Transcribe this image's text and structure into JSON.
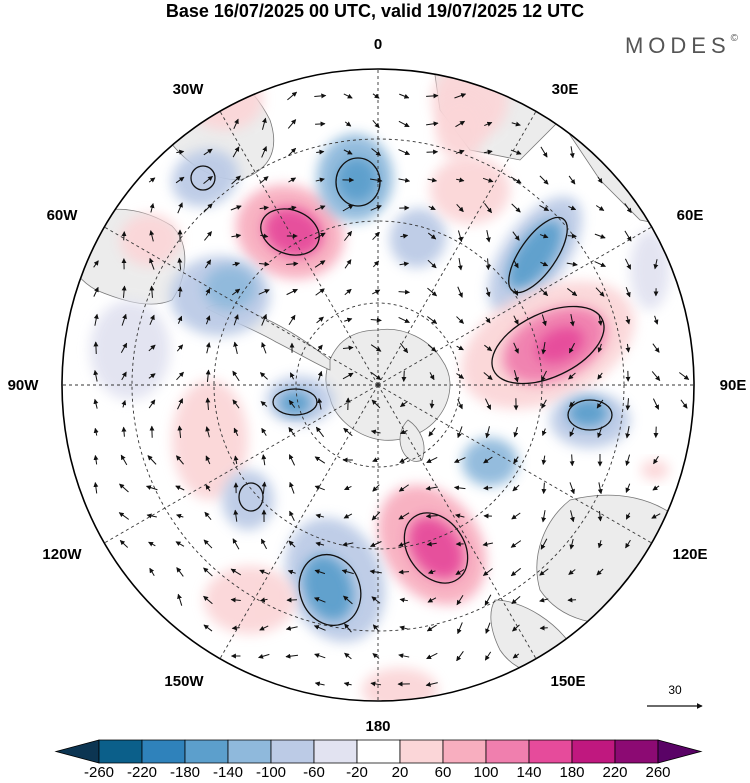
{
  "header": {
    "title": "Base 16/07/2025 00 UTC, valid 19/07/2025 12 UTC",
    "brand": "MODES",
    "brand_mark": "©"
  },
  "map": {
    "projection": "south polar stereographic",
    "longitude_labels": [
      "0",
      "30E",
      "60E",
      "90E",
      "120E",
      "150E",
      "180",
      "150W",
      "120W",
      "90W",
      "60W",
      "30W"
    ],
    "colors": {
      "land": "#ececec",
      "coast": "#777777",
      "grid": "#333333",
      "arrow": "#111111"
    },
    "reference_vector_label": "30"
  },
  "colorbar": {
    "tick_labels": [
      "-260",
      "-220",
      "-180",
      "-140",
      "-100",
      "-60",
      "-20",
      "20",
      "60",
      "100",
      "140",
      "180",
      "220",
      "260"
    ],
    "colors": [
      "#0c3552",
      "#0b5f8a",
      "#2f82bb",
      "#5c9fcc",
      "#8fb9dc",
      "#bccbe6",
      "#e2e3f1",
      "#ffffff",
      "#fbd6d8",
      "#f8aebf",
      "#f07fae",
      "#e64b9b",
      "#c0187f",
      "#8c0a73",
      "#5a0366"
    ]
  }
}
